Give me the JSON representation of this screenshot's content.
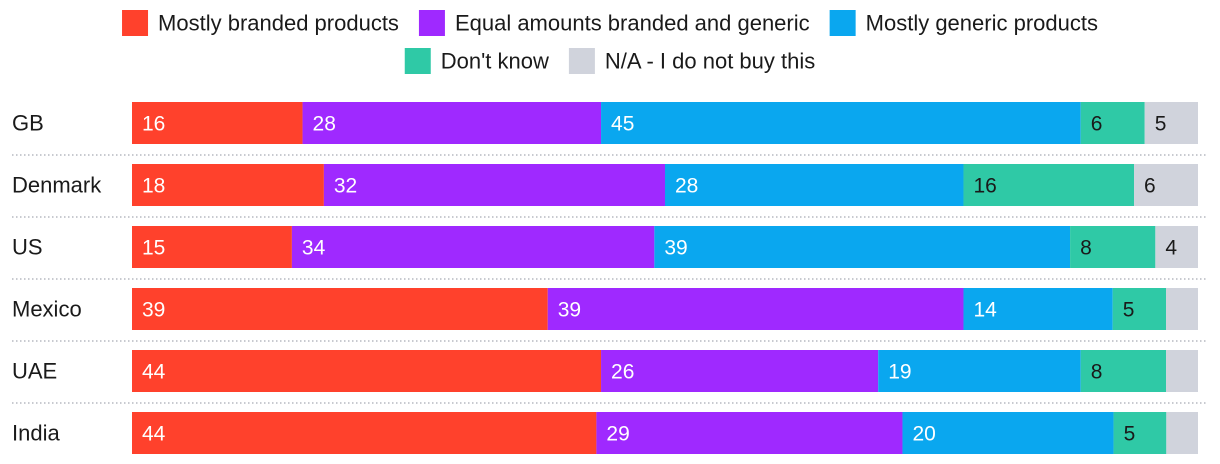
{
  "chart_data": {
    "type": "bar",
    "orientation": "horizontal",
    "stacked": true,
    "categories": [
      "GB",
      "Denmark",
      "US",
      "Mexico",
      "UAE",
      "India"
    ],
    "series": [
      {
        "name": "Mostly branded products",
        "color": "#FF412C",
        "text_color": "#ffffff",
        "values": [
          16,
          18,
          15,
          39,
          44,
          44
        ]
      },
      {
        "name": "Equal amounts branded and generic",
        "color": "#9F29FF",
        "text_color": "#ffffff",
        "values": [
          28,
          32,
          34,
          39,
          26,
          29
        ]
      },
      {
        "name": "Mostly generic products",
        "color": "#0AA7EF",
        "text_color": "#ffffff",
        "values": [
          45,
          28,
          39,
          14,
          19,
          20
        ]
      },
      {
        "name": "Don't know",
        "color": "#2FC9A6",
        "text_color": "#1a1a1a",
        "values": [
          6,
          16,
          8,
          5,
          8,
          5
        ]
      },
      {
        "name": "N/A - I do not buy this",
        "color": "#D0D3DC",
        "text_color": "#1a1a1a",
        "values": [
          5,
          6,
          4,
          3,
          3,
          3
        ]
      }
    ],
    "labels": [
      [
        "16",
        "28",
        "45",
        "6",
        "5"
      ],
      [
        "18",
        "32",
        "28",
        "16",
        "6"
      ],
      [
        "15",
        "34",
        "39",
        "8",
        "4"
      ],
      [
        "39",
        "39",
        "14",
        "5",
        ""
      ],
      [
        "44",
        "26",
        "19",
        "8",
        ""
      ],
      [
        "44",
        "29",
        "20",
        "5",
        ""
      ]
    ],
    "xlim": [
      0,
      100
    ],
    "legend_position": "top-center",
    "title": "",
    "xlabel": "",
    "ylabel": ""
  }
}
